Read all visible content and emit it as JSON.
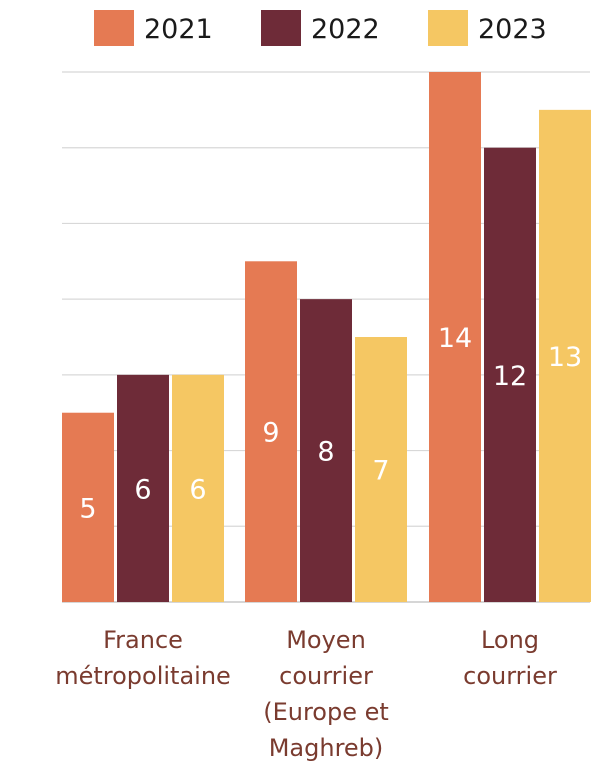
{
  "chart_data": {
    "type": "bar",
    "categories": [
      [
        "France",
        "métropolitaine"
      ],
      [
        "Moyen",
        "courrier",
        "(Europe et",
        "Maghreb)"
      ],
      [
        "Long",
        "courrier"
      ]
    ],
    "series": [
      {
        "name": "2021",
        "values": [
          5,
          9,
          14
        ],
        "color": "#e57a53"
      },
      {
        "name": "2022",
        "values": [
          6,
          8,
          12
        ],
        "color": "#6e2b38"
      },
      {
        "name": "2023",
        "values": [
          6,
          7,
          13
        ],
        "color": "#f5c763"
      }
    ],
    "ylim": [
      0,
      14
    ],
    "grid": true,
    "legend": "top"
  }
}
